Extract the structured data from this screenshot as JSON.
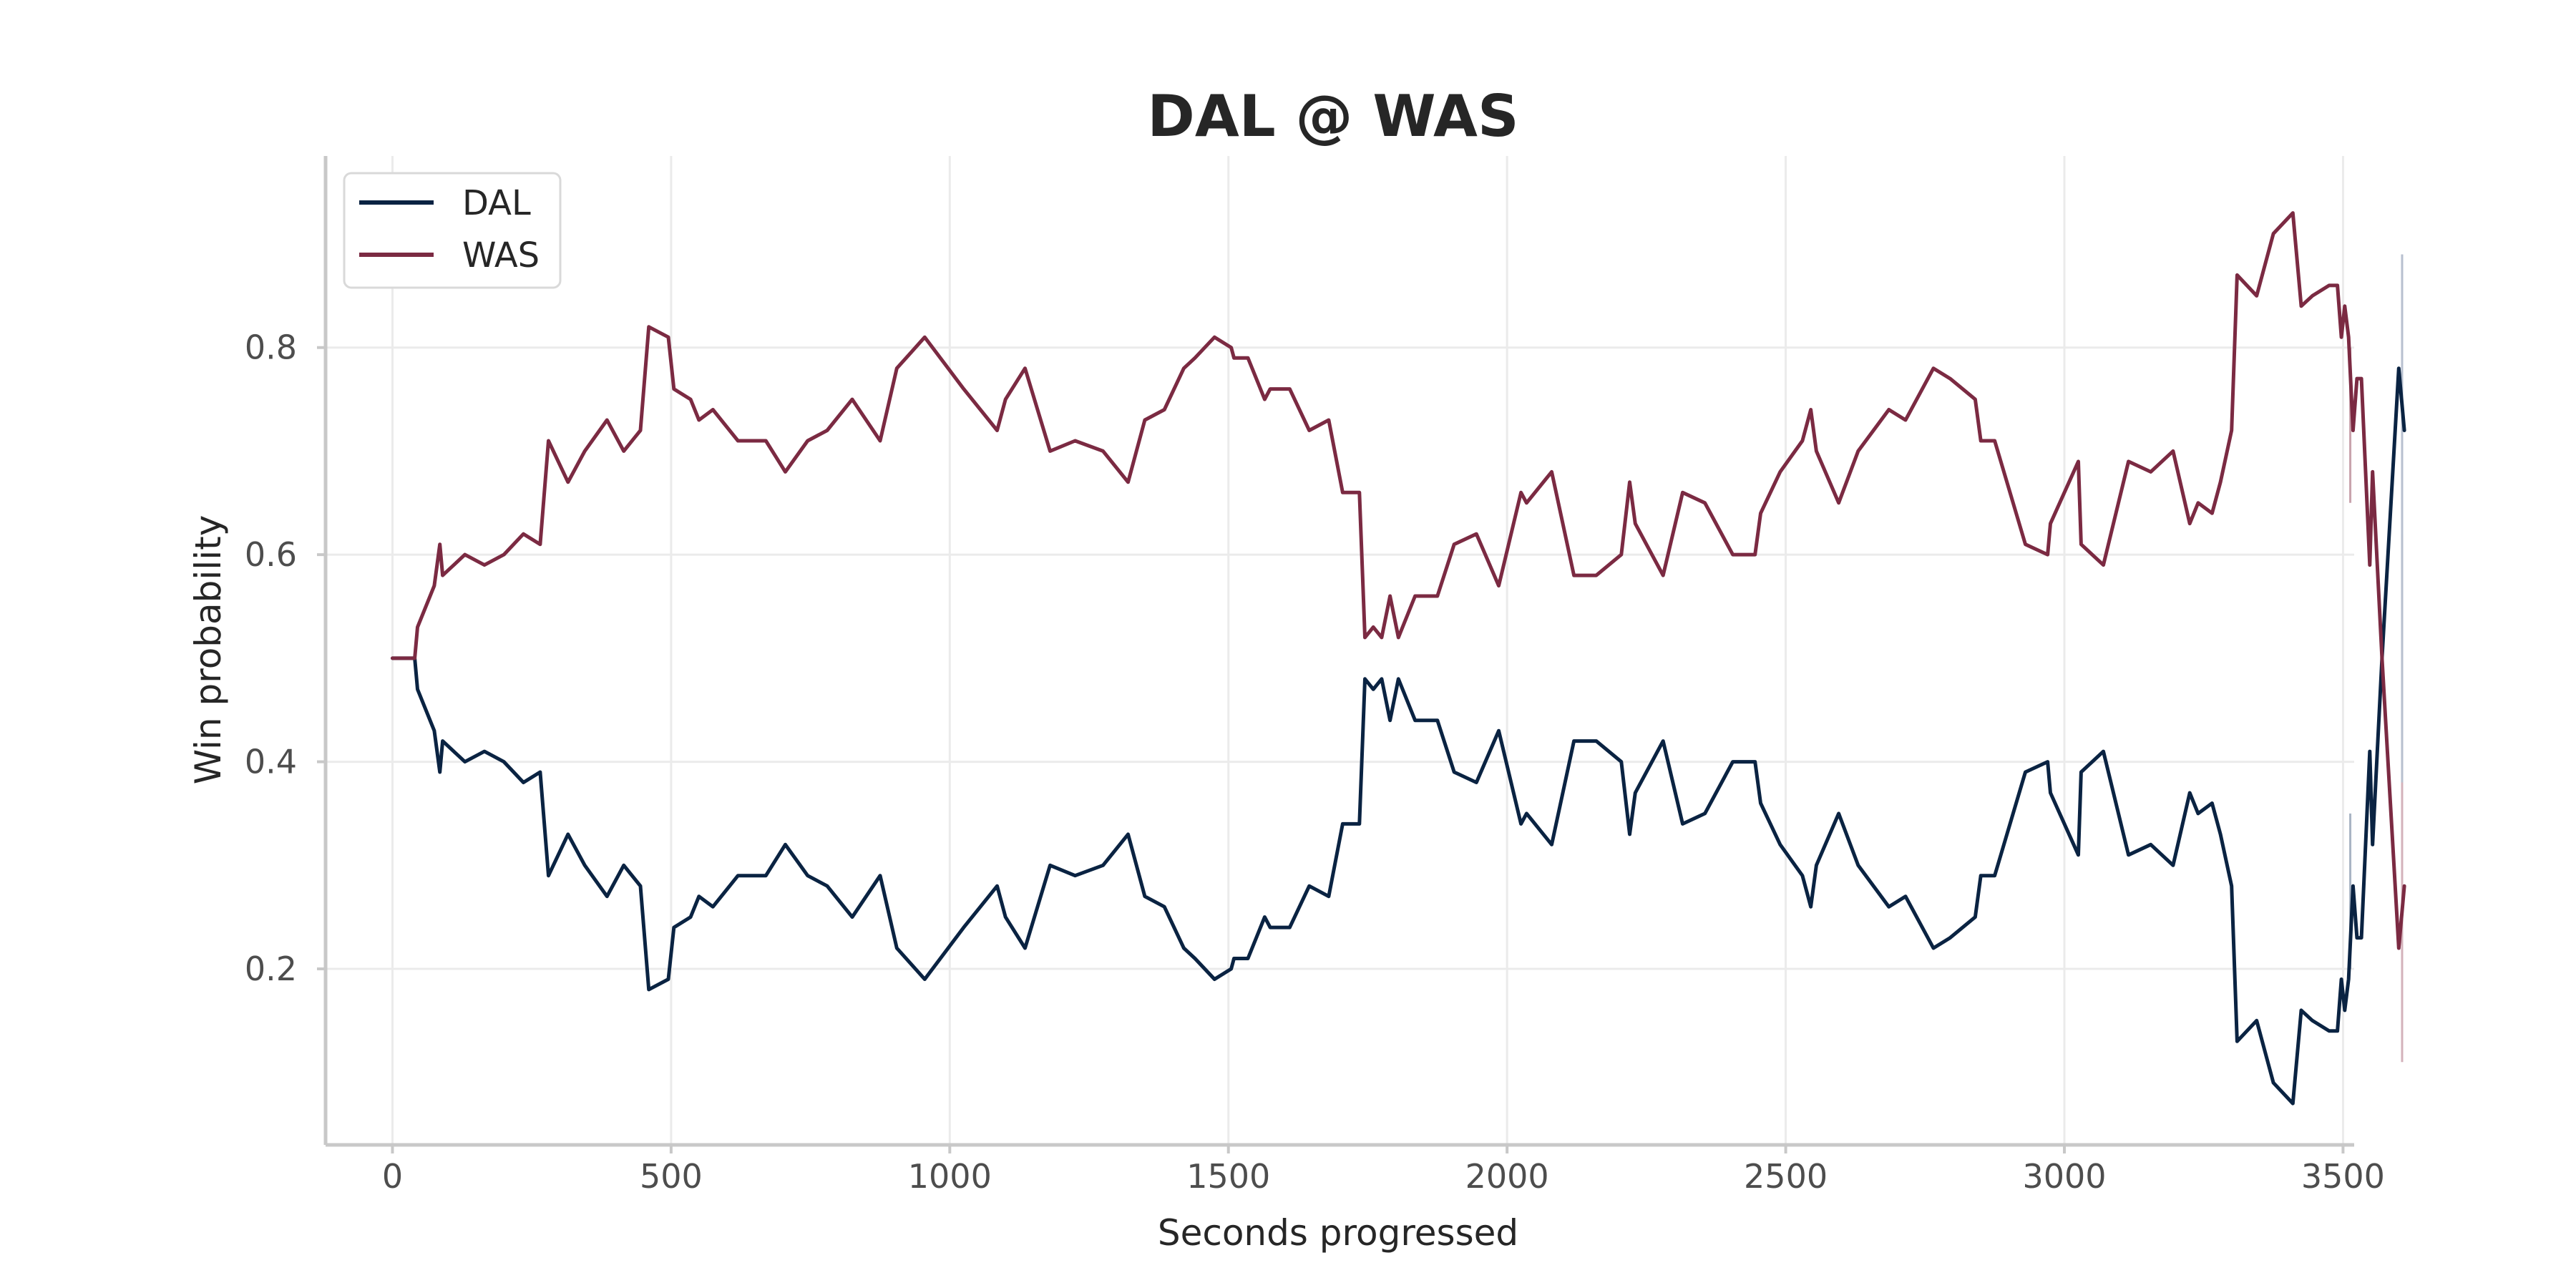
{
  "chart_data": {
    "type": "line",
    "title": "DAL @ WAS",
    "xlabel": "Seconds progressed",
    "ylabel": "Win probability",
    "xlim": [
      -120,
      3520
    ],
    "ylim": [
      0.03,
      0.985
    ],
    "xticks": [
      0,
      500,
      1000,
      1500,
      2000,
      2500,
      3000,
      3500
    ],
    "xtick_labels": [
      "0",
      "500",
      "1000",
      "1500",
      "2000",
      "2500",
      "3000",
      "3500"
    ],
    "yticks": [
      0.2,
      0.4,
      0.6,
      0.8
    ],
    "ytick_labels": [
      "0.2",
      "0.4",
      "0.6",
      "0.8"
    ],
    "grid": true,
    "legend_position": "top-left",
    "series": [
      {
        "name": "DAL",
        "color": "#0a2342",
        "points": [
          [
            0,
            0.5
          ],
          [
            40,
            0.5
          ],
          [
            45,
            0.47
          ],
          [
            75,
            0.43
          ],
          [
            85,
            0.39
          ],
          [
            90,
            0.42
          ],
          [
            130,
            0.4
          ],
          [
            165,
            0.41
          ],
          [
            200,
            0.4
          ],
          [
            235,
            0.38
          ],
          [
            265,
            0.39
          ],
          [
            280,
            0.29
          ],
          [
            315,
            0.33
          ],
          [
            345,
            0.3
          ],
          [
            385,
            0.27
          ],
          [
            415,
            0.3
          ],
          [
            445,
            0.28
          ],
          [
            460,
            0.18
          ],
          [
            495,
            0.19
          ],
          [
            505,
            0.24
          ],
          [
            535,
            0.25
          ],
          [
            550,
            0.27
          ],
          [
            575,
            0.26
          ],
          [
            620,
            0.29
          ],
          [
            670,
            0.29
          ],
          [
            705,
            0.32
          ],
          [
            745,
            0.29
          ],
          [
            780,
            0.28
          ],
          [
            825,
            0.25
          ],
          [
            875,
            0.29
          ],
          [
            905,
            0.22
          ],
          [
            955,
            0.19
          ],
          [
            1025,
            0.24
          ],
          [
            1085,
            0.28
          ],
          [
            1100,
            0.25
          ],
          [
            1135,
            0.22
          ],
          [
            1180,
            0.3
          ],
          [
            1225,
            0.29
          ],
          [
            1275,
            0.3
          ],
          [
            1320,
            0.33
          ],
          [
            1350,
            0.27
          ],
          [
            1385,
            0.26
          ],
          [
            1420,
            0.22
          ],
          [
            1440,
            0.21
          ],
          [
            1475,
            0.19
          ],
          [
            1505,
            0.2
          ],
          [
            1510,
            0.21
          ],
          [
            1535,
            0.21
          ],
          [
            1565,
            0.25
          ],
          [
            1575,
            0.24
          ],
          [
            1610,
            0.24
          ],
          [
            1645,
            0.28
          ],
          [
            1680,
            0.27
          ],
          [
            1705,
            0.34
          ],
          [
            1735,
            0.34
          ],
          [
            1745,
            0.48
          ],
          [
            1760,
            0.47
          ],
          [
            1775,
            0.48
          ],
          [
            1790,
            0.44
          ],
          [
            1805,
            0.48
          ],
          [
            1835,
            0.44
          ],
          [
            1875,
            0.44
          ],
          [
            1905,
            0.39
          ],
          [
            1945,
            0.38
          ],
          [
            1985,
            0.43
          ],
          [
            2025,
            0.34
          ],
          [
            2035,
            0.35
          ],
          [
            2080,
            0.32
          ],
          [
            2120,
            0.42
          ],
          [
            2160,
            0.42
          ],
          [
            2205,
            0.4
          ],
          [
            2220,
            0.33
          ],
          [
            2230,
            0.37
          ],
          [
            2280,
            0.42
          ],
          [
            2315,
            0.34
          ],
          [
            2355,
            0.35
          ],
          [
            2405,
            0.4
          ],
          [
            2445,
            0.4
          ],
          [
            2455,
            0.36
          ],
          [
            2490,
            0.32
          ],
          [
            2530,
            0.29
          ],
          [
            2545,
            0.26
          ],
          [
            2555,
            0.3
          ],
          [
            2595,
            0.35
          ],
          [
            2630,
            0.3
          ],
          [
            2685,
            0.26
          ],
          [
            2715,
            0.27
          ],
          [
            2765,
            0.22
          ],
          [
            2795,
            0.23
          ],
          [
            2840,
            0.25
          ],
          [
            2850,
            0.29
          ],
          [
            2875,
            0.29
          ],
          [
            2930,
            0.39
          ],
          [
            2970,
            0.4
          ],
          [
            2975,
            0.37
          ],
          [
            3025,
            0.31
          ],
          [
            3030,
            0.39
          ],
          [
            3070,
            0.41
          ],
          [
            3115,
            0.31
          ],
          [
            3155,
            0.32
          ],
          [
            3195,
            0.3
          ],
          [
            3225,
            0.37
          ],
          [
            3240,
            0.35
          ],
          [
            3265,
            0.36
          ],
          [
            3280,
            0.33
          ],
          [
            3300,
            0.28
          ],
          [
            3310,
            0.13
          ],
          [
            3345,
            0.15
          ],
          [
            3375,
            0.09
          ],
          [
            3410,
            0.07
          ],
          [
            3425,
            0.16
          ],
          [
            3445,
            0.15
          ],
          [
            3475,
            0.14
          ],
          [
            3490,
            0.14
          ],
          [
            3497,
            0.19
          ],
          [
            3503,
            0.16
          ],
          [
            3510,
            0.19
          ],
          [
            3518,
            0.28
          ],
          [
            3525,
            0.23
          ],
          [
            3533,
            0.23
          ],
          [
            3548,
            0.41
          ],
          [
            3553,
            0.32
          ],
          [
            3570,
            0.5
          ],
          [
            3585,
            0.64
          ],
          [
            3600,
            0.78
          ],
          [
            3610,
            0.72
          ]
        ]
      },
      {
        "name": "WAS",
        "color": "#7b2a42",
        "points": [
          [
            0,
            0.5
          ],
          [
            40,
            0.5
          ],
          [
            45,
            0.53
          ],
          [
            75,
            0.57
          ],
          [
            85,
            0.61
          ],
          [
            90,
            0.58
          ],
          [
            130,
            0.6
          ],
          [
            165,
            0.59
          ],
          [
            200,
            0.6
          ],
          [
            235,
            0.62
          ],
          [
            265,
            0.61
          ],
          [
            280,
            0.71
          ],
          [
            315,
            0.67
          ],
          [
            345,
            0.7
          ],
          [
            385,
            0.73
          ],
          [
            415,
            0.7
          ],
          [
            445,
            0.72
          ],
          [
            460,
            0.82
          ],
          [
            495,
            0.81
          ],
          [
            505,
            0.76
          ],
          [
            535,
            0.75
          ],
          [
            550,
            0.73
          ],
          [
            575,
            0.74
          ],
          [
            620,
            0.71
          ],
          [
            670,
            0.71
          ],
          [
            705,
            0.68
          ],
          [
            745,
            0.71
          ],
          [
            780,
            0.72
          ],
          [
            825,
            0.75
          ],
          [
            875,
            0.71
          ],
          [
            905,
            0.78
          ],
          [
            955,
            0.81
          ],
          [
            1025,
            0.76
          ],
          [
            1085,
            0.72
          ],
          [
            1100,
            0.75
          ],
          [
            1135,
            0.78
          ],
          [
            1180,
            0.7
          ],
          [
            1225,
            0.71
          ],
          [
            1275,
            0.7
          ],
          [
            1320,
            0.67
          ],
          [
            1350,
            0.73
          ],
          [
            1385,
            0.74
          ],
          [
            1420,
            0.78
          ],
          [
            1440,
            0.79
          ],
          [
            1475,
            0.81
          ],
          [
            1505,
            0.8
          ],
          [
            1510,
            0.79
          ],
          [
            1535,
            0.79
          ],
          [
            1565,
            0.75
          ],
          [
            1575,
            0.76
          ],
          [
            1610,
            0.76
          ],
          [
            1645,
            0.72
          ],
          [
            1680,
            0.73
          ],
          [
            1705,
            0.66
          ],
          [
            1735,
            0.66
          ],
          [
            1745,
            0.52
          ],
          [
            1760,
            0.53
          ],
          [
            1775,
            0.52
          ],
          [
            1790,
            0.56
          ],
          [
            1805,
            0.52
          ],
          [
            1835,
            0.56
          ],
          [
            1875,
            0.56
          ],
          [
            1905,
            0.61
          ],
          [
            1945,
            0.62
          ],
          [
            1985,
            0.57
          ],
          [
            2025,
            0.66
          ],
          [
            2035,
            0.65
          ],
          [
            2080,
            0.68
          ],
          [
            2120,
            0.58
          ],
          [
            2160,
            0.58
          ],
          [
            2205,
            0.6
          ],
          [
            2220,
            0.67
          ],
          [
            2230,
            0.63
          ],
          [
            2280,
            0.58
          ],
          [
            2315,
            0.66
          ],
          [
            2355,
            0.65
          ],
          [
            2405,
            0.6
          ],
          [
            2445,
            0.6
          ],
          [
            2455,
            0.64
          ],
          [
            2490,
            0.68
          ],
          [
            2530,
            0.71
          ],
          [
            2545,
            0.74
          ],
          [
            2555,
            0.7
          ],
          [
            2595,
            0.65
          ],
          [
            2630,
            0.7
          ],
          [
            2685,
            0.74
          ],
          [
            2715,
            0.73
          ],
          [
            2765,
            0.78
          ],
          [
            2795,
            0.77
          ],
          [
            2840,
            0.75
          ],
          [
            2850,
            0.71
          ],
          [
            2875,
            0.71
          ],
          [
            2930,
            0.61
          ],
          [
            2970,
            0.6
          ],
          [
            2975,
            0.63
          ],
          [
            3025,
            0.69
          ],
          [
            3030,
            0.61
          ],
          [
            3070,
            0.59
          ],
          [
            3115,
            0.69
          ],
          [
            3155,
            0.68
          ],
          [
            3195,
            0.7
          ],
          [
            3225,
            0.63
          ],
          [
            3240,
            0.65
          ],
          [
            3265,
            0.64
          ],
          [
            3280,
            0.67
          ],
          [
            3300,
            0.72
          ],
          [
            3310,
            0.87
          ],
          [
            3345,
            0.85
          ],
          [
            3375,
            0.91
          ],
          [
            3410,
            0.93
          ],
          [
            3425,
            0.84
          ],
          [
            3445,
            0.85
          ],
          [
            3475,
            0.86
          ],
          [
            3490,
            0.86
          ],
          [
            3497,
            0.81
          ],
          [
            3503,
            0.84
          ],
          [
            3510,
            0.81
          ],
          [
            3518,
            0.72
          ],
          [
            3525,
            0.77
          ],
          [
            3533,
            0.77
          ],
          [
            3548,
            0.59
          ],
          [
            3553,
            0.68
          ],
          [
            3570,
            0.5
          ],
          [
            3585,
            0.36
          ],
          [
            3600,
            0.22
          ],
          [
            3610,
            0.28
          ]
        ]
      }
    ],
    "faint_spikes": [
      {
        "x": 3513,
        "y1": 0.65,
        "y2": 0.8,
        "color": "#c9a3ad"
      },
      {
        "x": 3513,
        "y1": 0.2,
        "y2": 0.35,
        "color": "#a9b4c4"
      },
      {
        "x": 3606,
        "y1": 0.11,
        "y2": 0.62,
        "color": "#d4b2bb"
      },
      {
        "x": 3606,
        "y1": 0.38,
        "y2": 0.89,
        "color": "#b7c0cf"
      }
    ]
  }
}
